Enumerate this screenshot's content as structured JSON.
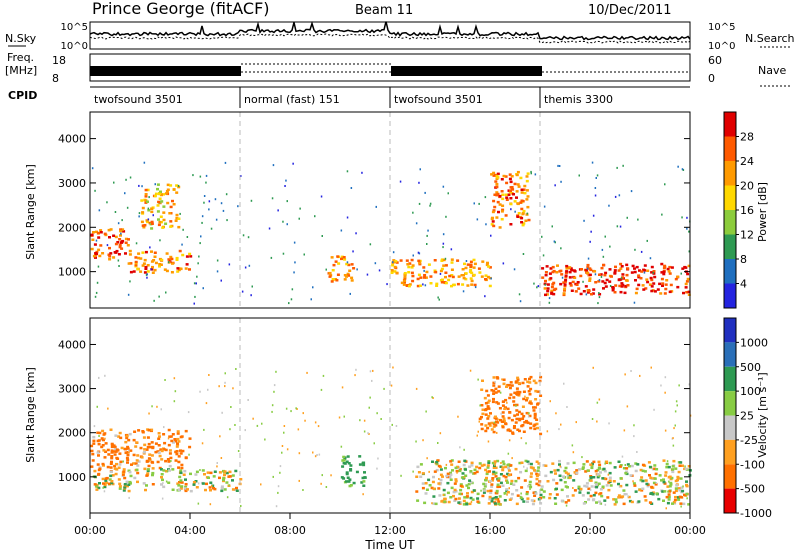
{
  "header": {
    "station": "Prince George (fitACF)",
    "beam": "Beam 11",
    "date": "10/Dec/2011"
  },
  "noise_panel": {
    "left_label": "N.Sky",
    "right_label": "N.Search",
    "ticks_left": [
      "10^5",
      "10^0"
    ],
    "ticks_right": [
      "10^5",
      "10^0"
    ]
  },
  "freq_panel": {
    "left_label_1": "Freq.",
    "left_label_2": "[MHz]",
    "right_label": "Nave",
    "ticks_left": [
      "18",
      "8"
    ],
    "ticks_right": [
      "60",
      "0"
    ]
  },
  "cpid": {
    "label": "CPID",
    "segments": [
      {
        "name": "twofsound 3501",
        "start": 0,
        "end": 6
      },
      {
        "name": "normal (fast) 151",
        "start": 6,
        "end": 12
      },
      {
        "name": "twofsound 3501",
        "start": 12,
        "end": 18
      },
      {
        "name": "themis 3300",
        "start": 18,
        "end": 24
      }
    ]
  },
  "power_panel": {
    "ylabel": "Slant Range [km]",
    "cbar_label": "Power [dB]",
    "cbar_ticks": [
      "28",
      "24",
      "20",
      "16",
      "12",
      "8",
      "4"
    ],
    "cbar_colors": [
      "#e00000",
      "#ff5a00",
      "#ff9a00",
      "#ffd800",
      "#8ccc3c",
      "#2e9a52",
      "#1f6fbf",
      "#2424e0"
    ]
  },
  "velocity_panel": {
    "ylabel": "Slant Range [km]",
    "cbar_label": "Velocity [m s⁻¹]",
    "cbar_ticks": [
      "1000",
      "500",
      "100",
      "25",
      "-25",
      "-100",
      "-500",
      "-1000"
    ],
    "cbar_colors": [
      "#2030c0",
      "#2a6fb8",
      "#2e9a52",
      "#88cc44",
      "#c8c8c8",
      "#ffa020",
      "#ff7000",
      "#e80000"
    ]
  },
  "xaxis": {
    "label": "Time UT",
    "ticks": [
      "00:00",
      "04:00",
      "08:00",
      "12:00",
      "16:00",
      "20:00",
      "00:00"
    ]
  },
  "chart_data": {
    "type": "heatmap",
    "title": "Prince George (fitACF) Beam 11 10/Dec/2011",
    "xlabel": "Time UT",
    "x_range_hours": [
      0,
      24
    ],
    "panels": [
      {
        "name": "Power",
        "ylabel": "Slant Range [km]",
        "ylim": [
          180,
          4600
        ],
        "yticks": [
          1000,
          2000,
          3000,
          4000
        ],
        "colorbar": {
          "label": "Power [dB]",
          "ticks": [
            4,
            8,
            12,
            16,
            20,
            24,
            28
          ],
          "range": [
            0,
            32
          ]
        },
        "features": [
          {
            "t": [
              0.0,
              1.5
            ],
            "range_km": [
              1300,
              2000
            ],
            "value": 26
          },
          {
            "t": [
              1.5,
              4.0
            ],
            "range_km": [
              1000,
              1500
            ],
            "value": 24
          },
          {
            "t": [
              2.0,
              3.5
            ],
            "range_km": [
              2000,
              3000
            ],
            "value": 20
          },
          {
            "t": [
              9.5,
              10.5
            ],
            "range_km": [
              800,
              1400
            ],
            "value": 22
          },
          {
            "t": [
              12.0,
              16.0
            ],
            "range_km": [
              700,
              1300
            ],
            "value": 22
          },
          {
            "t": [
              16.0,
              17.5
            ],
            "range_km": [
              2000,
              3300
            ],
            "value": 24
          },
          {
            "t": [
              18.0,
              24.0
            ],
            "range_km": [
              500,
              1200
            ],
            "value": 28
          }
        ]
      },
      {
        "name": "Velocity",
        "ylabel": "Slant Range [km]",
        "ylim": [
          180,
          4600
        ],
        "yticks": [
          1000,
          2000,
          3000,
          4000
        ],
        "colorbar": {
          "label": "Velocity [m s⁻¹]",
          "ticks": [
            1000,
            500,
            100,
            25,
            -25,
            -100,
            -500,
            -1000
          ]
        },
        "features": [
          {
            "t": [
              0.0,
              4.0
            ],
            "range_km": [
              1200,
              2100
            ],
            "value": -150
          },
          {
            "t": [
              0.0,
              6.0
            ],
            "range_km": [
              700,
              1200
            ],
            "value": 0
          },
          {
            "t": [
              10.0,
              11.0
            ],
            "range_km": [
              800,
              1500
            ],
            "value": 200
          },
          {
            "t": [
              15.5,
              18.0
            ],
            "range_km": [
              2000,
              3300
            ],
            "value": -200
          },
          {
            "t": [
              13.0,
              24.0
            ],
            "range_km": [
              400,
              1400
            ],
            "value": 0
          }
        ]
      }
    ],
    "noise": {
      "left_label": "N.Sky",
      "right_label": "N.Search"
    },
    "frequency": {
      "label": "Freq. [MHz]",
      "ylim": [
        8,
        18
      ],
      "nave_label": "Nave",
      "nave_ylim": [
        0,
        60
      ]
    }
  }
}
